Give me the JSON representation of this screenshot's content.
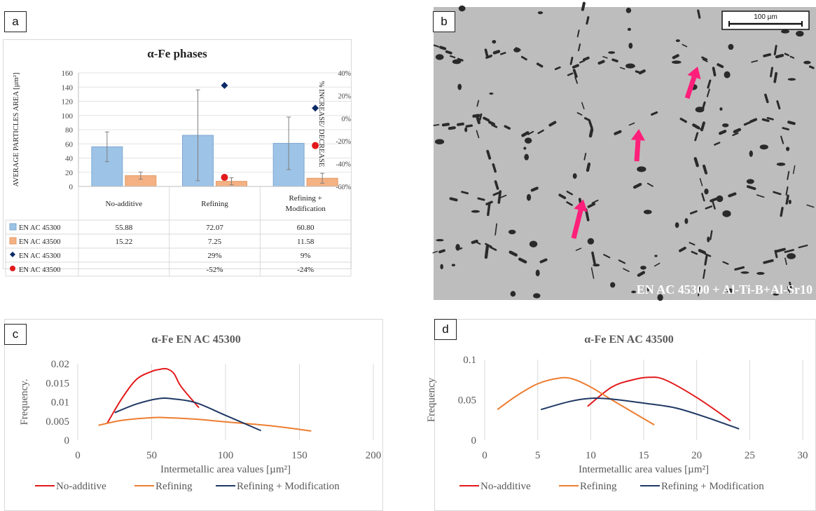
{
  "panels": {
    "a": "a",
    "b": "b",
    "c": "c",
    "d": "d"
  },
  "chart_data": [
    {
      "id": "a",
      "type": "bar",
      "title": "α-Fe phases",
      "ylabel": "AVERAGE PARTICLES AREA [µm²]",
      "y2label": "% INCREASE/ DECREASE",
      "ylim": [
        0,
        160
      ],
      "yticks": [
        0,
        20,
        40,
        60,
        80,
        100,
        120,
        140,
        160
      ],
      "y2lim": [
        -60,
        40
      ],
      "y2ticks": [
        "-60%",
        "-40%",
        "-20%",
        "0%",
        "20%",
        "40%"
      ],
      "categories": [
        "No-additive",
        "Refining",
        "Refining + Modification"
      ],
      "series": [
        {
          "name": "EN AC 45300",
          "kind": "bar",
          "color": "#9dc3e6",
          "values": [
            55.88,
            72.07,
            60.8
          ],
          "labels": [
            "55.88",
            "72.07",
            "60.80"
          ],
          "err": [
            21,
            64,
            37
          ]
        },
        {
          "name": "EN AC 43500",
          "kind": "bar",
          "color": "#f4b183",
          "values": [
            15.22,
            7.25,
            11.58
          ],
          "labels": [
            "15.22",
            "7.25",
            "11.58"
          ],
          "err": [
            5,
            5,
            7
          ]
        },
        {
          "name": "EN AC 45300",
          "kind": "diamond",
          "color": "#0b2a66",
          "values": [
            null,
            29,
            9
          ],
          "labels": [
            "",
            "29%",
            "9%"
          ]
        },
        {
          "name": "EN AC 43500",
          "kind": "dot",
          "color": "#e31a1c",
          "values": [
            null,
            -52,
            -24
          ],
          "labels": [
            "",
            "-52%",
            "-24%"
          ]
        }
      ],
      "grid": true
    },
    {
      "id": "c",
      "type": "line",
      "title": "α-Fe EN AC 45300",
      "xlabel": "Intermetallic area values [µm²]",
      "ylabel": "Frequency.",
      "xlim": [
        0,
        200
      ],
      "xticks": [
        "0",
        "50",
        "100",
        "150",
        "200"
      ],
      "ylim": [
        0,
        0.02
      ],
      "yticks": [
        "0",
        "0.005",
        "0.01",
        "0.015",
        "0.02"
      ],
      "series": [
        {
          "name": "No-additive",
          "color": "#e31a1c",
          "x": [
            20,
            30,
            40,
            50,
            55,
            60,
            65,
            70,
            82
          ],
          "y": [
            0.0045,
            0.011,
            0.016,
            0.018,
            0.0185,
            0.0187,
            0.0175,
            0.014,
            0.0085
          ]
        },
        {
          "name": "Refining",
          "color": "#ed7d31",
          "x": [
            14,
            30,
            50,
            60,
            80,
            100,
            130,
            158
          ],
          "y": [
            0.0039,
            0.0052,
            0.0059,
            0.0059,
            0.0055,
            0.0048,
            0.0038,
            0.0024
          ]
        },
        {
          "name": "Refining + Modification",
          "color": "#1f3864",
          "x": [
            25,
            40,
            55,
            65,
            80,
            100,
            124
          ],
          "y": [
            0.0072,
            0.0095,
            0.0109,
            0.0108,
            0.0098,
            0.0065,
            0.0025
          ]
        }
      ],
      "legend": "bottom",
      "grid": true
    },
    {
      "id": "d",
      "type": "line",
      "title": "α-Fe EN AC 43500",
      "xlabel": "Intermetallic area values [µm²]",
      "ylabel": "Frequency",
      "xlim": [
        0,
        30
      ],
      "xticks": [
        "0",
        "5",
        "10",
        "15",
        "20",
        "25",
        "30"
      ],
      "ylim": [
        0,
        0.1
      ],
      "yticks": [
        "0",
        "0.05",
        "0.1"
      ],
      "series": [
        {
          "name": "No-additive",
          "color": "#e31a1c",
          "x": [
            9.7,
            12,
            14,
            15.5,
            17,
            20,
            23.2
          ],
          "y": [
            0.042,
            0.066,
            0.075,
            0.078,
            0.075,
            0.053,
            0.024
          ]
        },
        {
          "name": "Refining",
          "color": "#ed7d31",
          "x": [
            1.2,
            3,
            5,
            7,
            8.3,
            10,
            12,
            16
          ],
          "y": [
            0.038,
            0.055,
            0.07,
            0.077,
            0.076,
            0.066,
            0.05,
            0.019
          ]
        },
        {
          "name": "Refining + Modification",
          "color": "#1f3864",
          "x": [
            5.3,
            8,
            10,
            12,
            15,
            18,
            21,
            24
          ],
          "y": [
            0.038,
            0.048,
            0.052,
            0.051,
            0.046,
            0.04,
            0.028,
            0.014
          ]
        }
      ],
      "legend": "bottom",
      "grid": true
    }
  ],
  "micrograph": {
    "scale_bar": "100 µm",
    "caption": "EN AC 45300 + Al-Ti-B+Al-Sr10",
    "arrow_color": "#ff1f7a",
    "background": "#bdbdbd",
    "phase_color": "#2a2a2a"
  }
}
